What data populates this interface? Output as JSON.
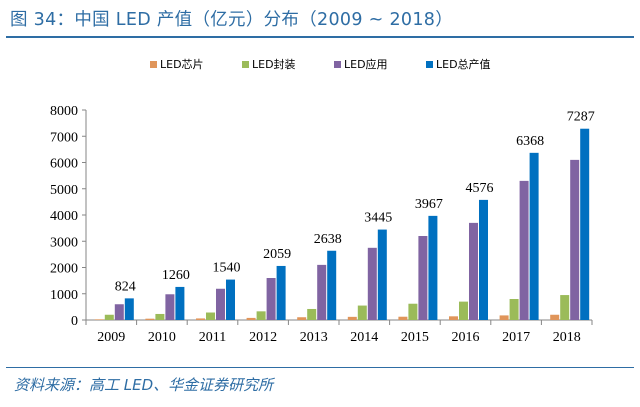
{
  "figure": {
    "title": "图 34：中国 LED 产值（亿元）分布（2009 ~ 2018）",
    "source": "资料来源：高工 LED、华金证券研究所"
  },
  "colors": {
    "chip": "#e0955a",
    "package": "#9bbb59",
    "application": "#8064a2",
    "total": "#0070c0",
    "axis": "#868686",
    "accent": "#2e6da4"
  },
  "chart_data": {
    "type": "bar",
    "title": "",
    "xlabel": "",
    "ylabel": "",
    "ylim": [
      0,
      8000
    ],
    "yticks": [
      0,
      1000,
      2000,
      3000,
      4000,
      5000,
      6000,
      7000,
      8000
    ],
    "grid": false,
    "legend_position": "top",
    "categories": [
      "2009",
      "2010",
      "2011",
      "2012",
      "2013",
      "2014",
      "2015",
      "2016",
      "2017",
      "2018"
    ],
    "series": [
      {
        "name": "LED芯片",
        "color_key": "chip",
        "values": [
          25,
          50,
          60,
          80,
          105,
          120,
          125,
          140,
          175,
          200
        ]
      },
      {
        "name": "LED封装",
        "color_key": "package",
        "values": [
          200,
          230,
          285,
          330,
          420,
          550,
          620,
          700,
          800,
          950
        ]
      },
      {
        "name": "LED应用",
        "color_key": "application",
        "values": [
          600,
          980,
          1190,
          1600,
          2100,
          2750,
          3200,
          3700,
          5300,
          6100
        ]
      },
      {
        "name": "LED总产值",
        "color_key": "total",
        "values": [
          824,
          1260,
          1540,
          2059,
          2638,
          3445,
          3967,
          4576,
          6368,
          7287
        ],
        "data_labels": true
      }
    ]
  }
}
